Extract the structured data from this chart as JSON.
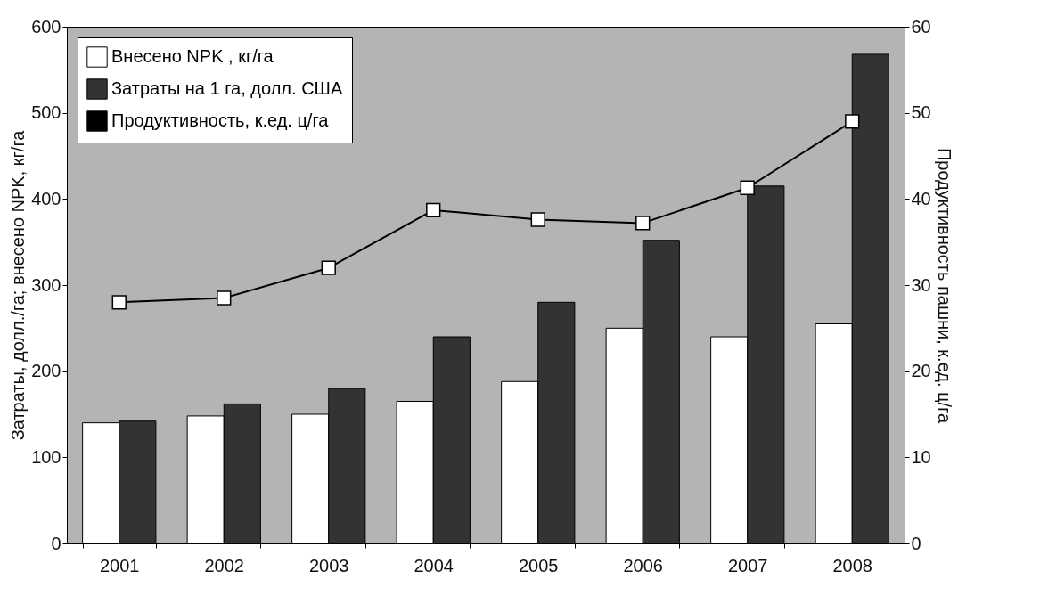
{
  "chart_data": {
    "type": "bar",
    "categories": [
      "2001",
      "2002",
      "2003",
      "2004",
      "2005",
      "2006",
      "2007",
      "2008"
    ],
    "ylabel": "Затраты, долл./га; внесено NPK, кг/га",
    "y2label": "Продуктивность пашни, к.ед. ц/га",
    "ylim": [
      0,
      600
    ],
    "yticks": [
      0,
      100,
      200,
      300,
      400,
      500,
      600
    ],
    "y2lim": [
      0,
      60
    ],
    "y2ticks": [
      0,
      10,
      20,
      30,
      40,
      50,
      60
    ],
    "legend": "top left",
    "marker": "square",
    "grid": false,
    "series": [
      {
        "name": "Внесено NPK , кг/га",
        "color": "#ffffff",
        "values": [
          140,
          148,
          150,
          165,
          188,
          250,
          240,
          255
        ]
      },
      {
        "name": "Затраты на 1 га, долл. США",
        "color": "#333333",
        "values": [
          142,
          162,
          180,
          240,
          280,
          352,
          415,
          568
        ]
      },
      {
        "name": "Продуктивность, к.ед. ц/га",
        "type": "line",
        "axis": "y2",
        "color": "#000000",
        "values": [
          28,
          28.5,
          32,
          38.7,
          37.6,
          37.2,
          41.3,
          49
        ]
      }
    ]
  }
}
